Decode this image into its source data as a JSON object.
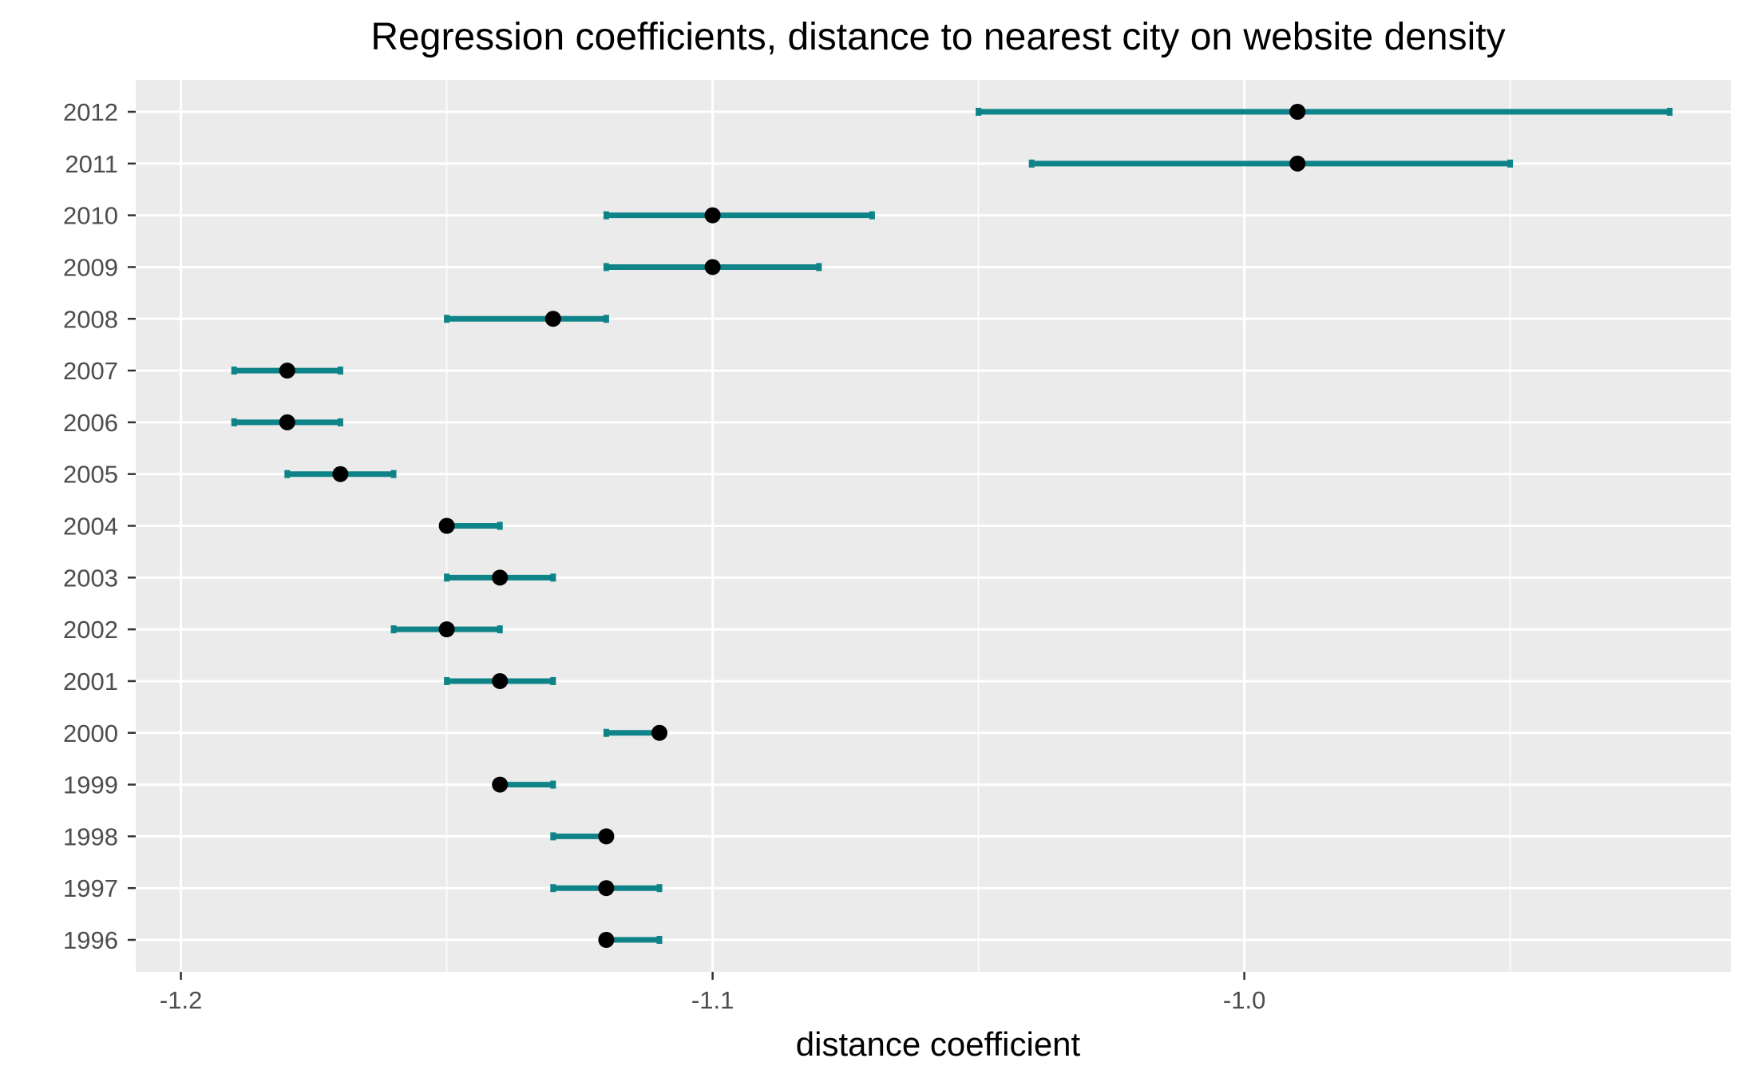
{
  "chart_data": {
    "type": "errorbar",
    "title": "Regression coefficients, distance to nearest city on website density",
    "xlabel": "distance coefficient",
    "ylabel": "",
    "xlim": [
      -1.2085,
      -0.9085
    ],
    "x_ticks": [
      -1.2,
      -1.1,
      -1.0
    ],
    "x_tick_labels": [
      "-1.2",
      "-1.1",
      "-1.0"
    ],
    "x_minor_ticks": [
      -1.15,
      -1.05,
      -0.95
    ],
    "categories": [
      "1996",
      "1997",
      "1998",
      "1999",
      "2000",
      "2001",
      "2002",
      "2003",
      "2004",
      "2005",
      "2006",
      "2007",
      "2008",
      "2009",
      "2010",
      "2011",
      "2012"
    ],
    "estimates": [
      -1.12,
      -1.12,
      -1.12,
      -1.14,
      -1.11,
      -1.14,
      -1.15,
      -1.14,
      -1.15,
      -1.17,
      -1.18,
      -1.18,
      -1.13,
      -1.1,
      -1.1,
      -0.99,
      -0.99
    ],
    "lower": [
      -1.12,
      -1.13,
      -1.13,
      -1.14,
      -1.12,
      -1.15,
      -1.16,
      -1.15,
      -1.15,
      -1.18,
      -1.19,
      -1.19,
      -1.15,
      -1.12,
      -1.12,
      -1.04,
      -1.05
    ],
    "upper": [
      -1.11,
      -1.11,
      -1.12,
      -1.13,
      -1.11,
      -1.13,
      -1.14,
      -1.13,
      -1.14,
      -1.16,
      -1.17,
      -1.17,
      -1.12,
      -1.08,
      -1.07,
      -0.95,
      -0.92
    ],
    "grid": true,
    "colors": {
      "panel_background": "#ebebeb",
      "grid": "#ffffff",
      "errorbar": "#0e8388",
      "point": "#000000",
      "tick": "#333333"
    }
  }
}
